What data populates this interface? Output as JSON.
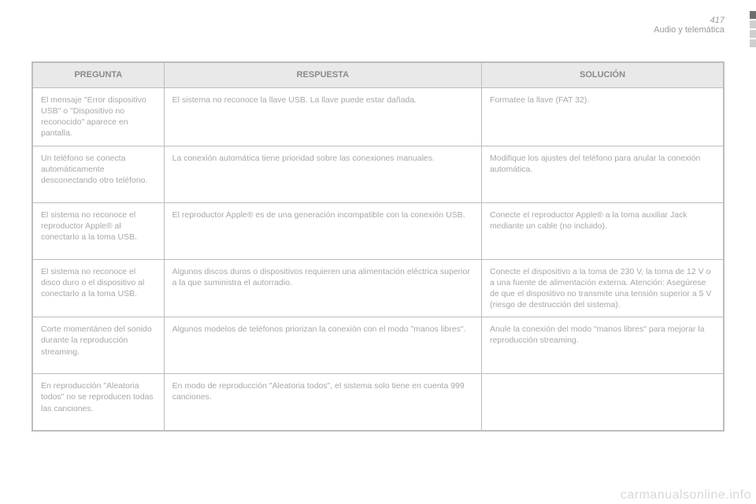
{
  "page": {
    "number": "417",
    "section": "Audio y telemática"
  },
  "table": {
    "headers": {
      "q": "PREGUNTA",
      "a": "RESPUESTA",
      "s": "SOLUCIÓN"
    },
    "rows": [
      {
        "q": "El mensaje \"Error dispositivo USB\" o \"Dispositivo no reconocido\" aparece en pantalla.",
        "a": "El sistema no reconoce la llave USB.\nLa llave puede estar dañada.",
        "s": "Formatee la llave (FAT 32)."
      },
      {
        "q": "Un teléfono se conecta automáticamente desconectando otro teléfono.",
        "a": "La conexión automática tiene prioridad sobre las conexiones manuales.",
        "s": "Modifique los ajustes del teléfono para anular la conexión automática."
      },
      {
        "q": "El sistema no reconoce el reproductor Apple® al conectarlo a la toma USB.",
        "a": "El reproductor Apple® es de una generación incompatible con la conexión USB.",
        "s": "Conecte el reproductor Apple® a la toma auxiliar Jack mediante un cable (no incluido)."
      },
      {
        "q": "El sistema no reconoce el disco duro o el dispositivo al conectarlo a la toma USB.",
        "a": "Algunos discos duros o dispositivos requieren una alimentación eléctrica superior a la que suministra el autorradio.",
        "s": "Conecte el dispositivo a la toma de 230 V, la toma de 12 V o a una fuente de alimentación externa. Atención: Asegúrese de que el dispositivo no transmite una tensión superior a 5 V (riesgo de destrucción del sistema)."
      },
      {
        "q": "Corte momentáneo del sonido durante la reproducción streaming.",
        "a": "Algunos modelos de teléfonos priorizan la conexión con el modo \"manos libres\".",
        "s": "Anule la conexión del modo \"manos libres\" para mejorar la reproducción streaming."
      },
      {
        "q": "En reproducción \"Aleatoria todos\" no se reproducen todas las canciones.",
        "a": "En modo de reproducción \"Aleatoria todos\", el sistema solo tiene en cuenta 999 canciones.",
        "s": ""
      }
    ]
  },
  "watermark": "carmanualsonline.info"
}
